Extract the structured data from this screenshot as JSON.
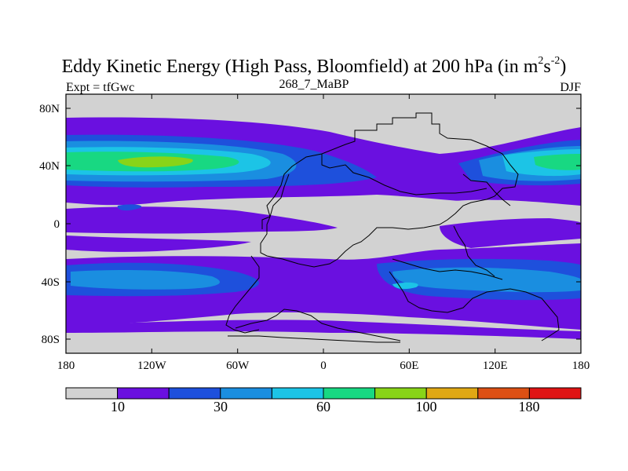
{
  "header": {
    "title_main": "Eddy Kinetic Energy (High Pass, Bloomfield) at 200 hPa (in m",
    "title_sup1": "2",
    "title_mid": "s",
    "title_sup2": "-2",
    "title_end": ")",
    "left_label": "Expt = tfGwc",
    "center_label": "268_7_MaBP",
    "right_label": "DJF"
  },
  "chart_data": {
    "type": "map",
    "variable": "Eddy Kinetic Energy (High Pass, Bloomfield) at 200 hPa",
    "units": "m2s-2",
    "experiment": "tfGwc",
    "run": "268_7_MaBP",
    "season": "DJF",
    "x_ticks": [
      "180",
      "120W",
      "60W",
      "0",
      "60E",
      "120E",
      "180"
    ],
    "y_ticks": [
      "80N",
      "40N",
      "0",
      "40S",
      "80S"
    ],
    "colorbar": {
      "colors": [
        "#d2d2d2",
        "#6a10e0",
        "#1e50dc",
        "#1a8ee0",
        "#1cc4e6",
        "#18d882",
        "#88d418",
        "#e0a814",
        "#dc5014",
        "#e01414"
      ],
      "labels": [
        "10",
        "30",
        "60",
        "100",
        "180"
      ]
    }
  }
}
